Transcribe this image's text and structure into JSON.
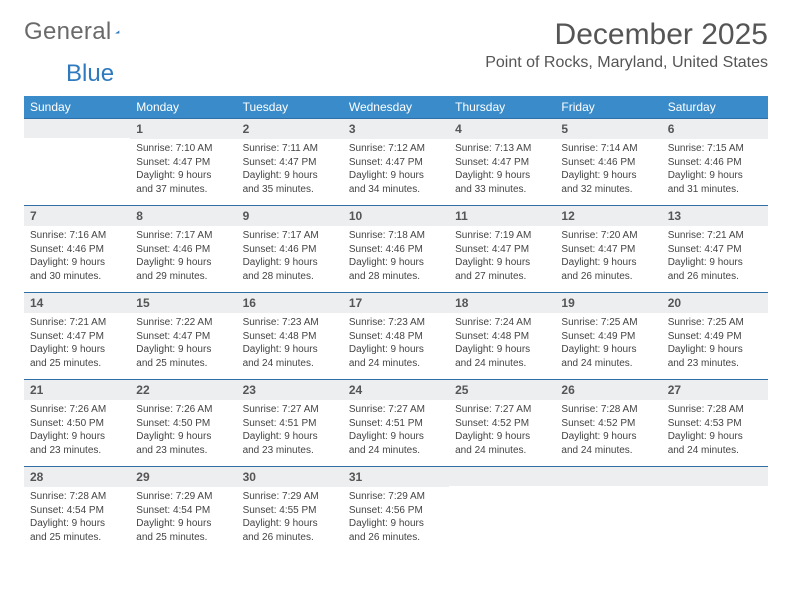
{
  "logo": {
    "part1": "General",
    "part2": "Blue"
  },
  "title": "December 2025",
  "location": "Point of Rocks, Maryland, United States",
  "colors": {
    "header_bg": "#3a8bc9",
    "row_divider": "#2f6fa5",
    "daynum_bg": "#eceef0",
    "text": "#444444"
  },
  "weekdays": [
    "Sunday",
    "Monday",
    "Tuesday",
    "Wednesday",
    "Thursday",
    "Friday",
    "Saturday"
  ],
  "weeks": [
    [
      null,
      {
        "n": "1",
        "sunrise": "7:10 AM",
        "sunset": "4:47 PM",
        "daylight": "9 hours and 37 minutes."
      },
      {
        "n": "2",
        "sunrise": "7:11 AM",
        "sunset": "4:47 PM",
        "daylight": "9 hours and 35 minutes."
      },
      {
        "n": "3",
        "sunrise": "7:12 AM",
        "sunset": "4:47 PM",
        "daylight": "9 hours and 34 minutes."
      },
      {
        "n": "4",
        "sunrise": "7:13 AM",
        "sunset": "4:47 PM",
        "daylight": "9 hours and 33 minutes."
      },
      {
        "n": "5",
        "sunrise": "7:14 AM",
        "sunset": "4:46 PM",
        "daylight": "9 hours and 32 minutes."
      },
      {
        "n": "6",
        "sunrise": "7:15 AM",
        "sunset": "4:46 PM",
        "daylight": "9 hours and 31 minutes."
      }
    ],
    [
      {
        "n": "7",
        "sunrise": "7:16 AM",
        "sunset": "4:46 PM",
        "daylight": "9 hours and 30 minutes."
      },
      {
        "n": "8",
        "sunrise": "7:17 AM",
        "sunset": "4:46 PM",
        "daylight": "9 hours and 29 minutes."
      },
      {
        "n": "9",
        "sunrise": "7:17 AM",
        "sunset": "4:46 PM",
        "daylight": "9 hours and 28 minutes."
      },
      {
        "n": "10",
        "sunrise": "7:18 AM",
        "sunset": "4:46 PM",
        "daylight": "9 hours and 28 minutes."
      },
      {
        "n": "11",
        "sunrise": "7:19 AM",
        "sunset": "4:47 PM",
        "daylight": "9 hours and 27 minutes."
      },
      {
        "n": "12",
        "sunrise": "7:20 AM",
        "sunset": "4:47 PM",
        "daylight": "9 hours and 26 minutes."
      },
      {
        "n": "13",
        "sunrise": "7:21 AM",
        "sunset": "4:47 PM",
        "daylight": "9 hours and 26 minutes."
      }
    ],
    [
      {
        "n": "14",
        "sunrise": "7:21 AM",
        "sunset": "4:47 PM",
        "daylight": "9 hours and 25 minutes."
      },
      {
        "n": "15",
        "sunrise": "7:22 AM",
        "sunset": "4:47 PM",
        "daylight": "9 hours and 25 minutes."
      },
      {
        "n": "16",
        "sunrise": "7:23 AM",
        "sunset": "4:48 PM",
        "daylight": "9 hours and 24 minutes."
      },
      {
        "n": "17",
        "sunrise": "7:23 AM",
        "sunset": "4:48 PM",
        "daylight": "9 hours and 24 minutes."
      },
      {
        "n": "18",
        "sunrise": "7:24 AM",
        "sunset": "4:48 PM",
        "daylight": "9 hours and 24 minutes."
      },
      {
        "n": "19",
        "sunrise": "7:25 AM",
        "sunset": "4:49 PM",
        "daylight": "9 hours and 24 minutes."
      },
      {
        "n": "20",
        "sunrise": "7:25 AM",
        "sunset": "4:49 PM",
        "daylight": "9 hours and 23 minutes."
      }
    ],
    [
      {
        "n": "21",
        "sunrise": "7:26 AM",
        "sunset": "4:50 PM",
        "daylight": "9 hours and 23 minutes."
      },
      {
        "n": "22",
        "sunrise": "7:26 AM",
        "sunset": "4:50 PM",
        "daylight": "9 hours and 23 minutes."
      },
      {
        "n": "23",
        "sunrise": "7:27 AM",
        "sunset": "4:51 PM",
        "daylight": "9 hours and 23 minutes."
      },
      {
        "n": "24",
        "sunrise": "7:27 AM",
        "sunset": "4:51 PM",
        "daylight": "9 hours and 24 minutes."
      },
      {
        "n": "25",
        "sunrise": "7:27 AM",
        "sunset": "4:52 PM",
        "daylight": "9 hours and 24 minutes."
      },
      {
        "n": "26",
        "sunrise": "7:28 AM",
        "sunset": "4:52 PM",
        "daylight": "9 hours and 24 minutes."
      },
      {
        "n": "27",
        "sunrise": "7:28 AM",
        "sunset": "4:53 PM",
        "daylight": "9 hours and 24 minutes."
      }
    ],
    [
      {
        "n": "28",
        "sunrise": "7:28 AM",
        "sunset": "4:54 PM",
        "daylight": "9 hours and 25 minutes."
      },
      {
        "n": "29",
        "sunrise": "7:29 AM",
        "sunset": "4:54 PM",
        "daylight": "9 hours and 25 minutes."
      },
      {
        "n": "30",
        "sunrise": "7:29 AM",
        "sunset": "4:55 PM",
        "daylight": "9 hours and 26 minutes."
      },
      {
        "n": "31",
        "sunrise": "7:29 AM",
        "sunset": "4:56 PM",
        "daylight": "9 hours and 26 minutes."
      },
      null,
      null,
      null
    ]
  ],
  "labels": {
    "sunrise": "Sunrise:",
    "sunset": "Sunset:",
    "daylight": "Daylight:"
  }
}
